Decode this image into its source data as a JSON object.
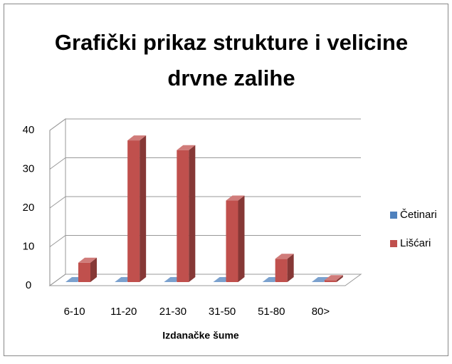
{
  "chart_data": {
    "type": "bar3d",
    "title": [
      "Grafički prikaz strukture i velicine",
      "drvne zalihe"
    ],
    "x_label": "Izdanačke šume",
    "categories": [
      "6-10",
      "11-20",
      "21-30",
      "31-50",
      "51-80",
      "80>"
    ],
    "series": [
      {
        "name": "Četinari",
        "color": "#4f81bd",
        "values": [
          0,
          0,
          0,
          0,
          0,
          0
        ]
      },
      {
        "name": "Lišćari",
        "color": "#c0504d",
        "values": [
          5,
          36.5,
          34,
          21,
          6,
          0.5
        ]
      }
    ],
    "ylim": [
      0,
      40
    ],
    "yticks": [
      0,
      10,
      20,
      30,
      40
    ],
    "grid": true,
    "legend": "right"
  }
}
